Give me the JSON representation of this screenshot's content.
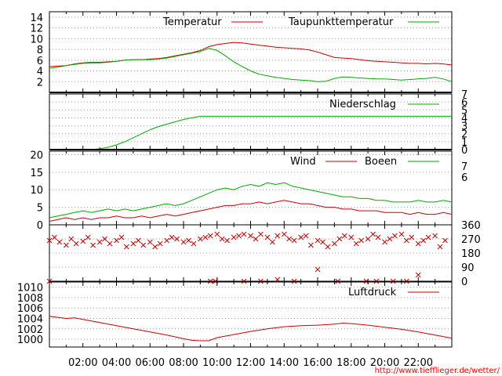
{
  "chart_data": [
    {
      "type": "line",
      "title": "",
      "xlabel": "",
      "ylabel": "",
      "xlim": [
        0,
        24
      ],
      "ylim": [
        0,
        15
      ],
      "yticks": [
        2,
        4,
        6,
        8,
        10,
        12,
        14
      ],
      "grid": true,
      "legend_position": "top-right",
      "series": [
        {
          "name": "Temperatur",
          "color": "#cc0000",
          "x": [
            0,
            0.5,
            1,
            1.5,
            2,
            2.5,
            3,
            3.5,
            4,
            4.5,
            5,
            5.5,
            6,
            6.5,
            7,
            7.5,
            8,
            8.5,
            9,
            9.5,
            10,
            10.5,
            11,
            11.5,
            12,
            12.5,
            13,
            13.5,
            14,
            14.5,
            15,
            15.5,
            16,
            16.5,
            17,
            17.5,
            18,
            18.5,
            19,
            19.5,
            20,
            20.5,
            21,
            21.5,
            22,
            22.5,
            23,
            23.5,
            24
          ],
          "values": [
            4.8,
            4.9,
            5.0,
            5.3,
            5.5,
            5.6,
            5.6,
            5.7,
            5.8,
            6.0,
            6.1,
            6.1,
            6.2,
            6.3,
            6.5,
            6.8,
            7.1,
            7.4,
            7.8,
            8.5,
            8.9,
            9.1,
            9.3,
            9.2,
            9.0,
            8.8,
            8.6,
            8.4,
            8.3,
            8.2,
            8.1,
            7.9,
            7.5,
            7.0,
            6.5,
            6.4,
            6.3,
            6.1,
            5.9,
            5.8,
            5.7,
            5.6,
            5.5,
            5.4,
            5.4,
            5.3,
            5.4,
            5.3,
            5.1
          ]
        },
        {
          "name": "Taupunkttemperatur",
          "color": "#00aa00",
          "x": [
            0,
            0.5,
            1,
            1.5,
            2,
            2.5,
            3,
            3.5,
            4,
            4.5,
            5,
            5.5,
            6,
            6.5,
            7,
            7.5,
            8,
            8.5,
            9,
            9.5,
            10,
            10.5,
            11,
            11.5,
            12,
            12.5,
            13,
            13.5,
            14,
            14.5,
            15,
            15.5,
            16,
            16.5,
            17,
            17.5,
            18,
            18.5,
            19,
            19.5,
            20,
            20.5,
            21,
            21.5,
            22,
            22.5,
            23,
            23.5,
            24
          ],
          "values": [
            4.5,
            4.7,
            5.0,
            5.2,
            5.4,
            5.5,
            5.5,
            5.6,
            5.8,
            6.0,
            6.1,
            6.1,
            6.1,
            6.2,
            6.4,
            6.7,
            7.0,
            7.3,
            7.6,
            8.2,
            7.8,
            6.8,
            5.7,
            4.8,
            4.0,
            3.4,
            3.1,
            2.8,
            2.6,
            2.4,
            2.3,
            2.2,
            2.0,
            2.1,
            2.6,
            2.9,
            2.8,
            2.7,
            2.6,
            2.5,
            2.5,
            2.4,
            2.3,
            2.4,
            2.5,
            2.6,
            2.8,
            2.5,
            2.0
          ]
        }
      ]
    },
    {
      "type": "line",
      "title": "",
      "xlabel": "",
      "ylabel": "",
      "xlim": [
        0,
        24
      ],
      "ylim": [
        0,
        7
      ],
      "yticks": [
        0,
        1,
        2,
        3,
        4,
        5,
        6,
        7
      ],
      "grid": true,
      "legend_position": "top-right",
      "series": [
        {
          "name": "Niederschlag",
          "color": "#00aa00",
          "x": [
            0,
            2.5,
            3,
            3.5,
            4,
            4.5,
            5,
            5.5,
            6,
            6.5,
            7,
            7.5,
            8,
            8.5,
            9,
            24
          ],
          "values": [
            0,
            0,
            0.1,
            0.3,
            0.6,
            1.0,
            1.5,
            2.0,
            2.5,
            2.9,
            3.2,
            3.5,
            3.8,
            4.0,
            4.2,
            4.2
          ]
        }
      ]
    },
    {
      "type": "line",
      "title": "",
      "xlabel": "",
      "ylabel": "",
      "xlim": [
        0,
        24
      ],
      "ylim": [
        0,
        21
      ],
      "yticks": [
        0,
        5,
        10,
        15,
        20
      ],
      "right_ticks": [
        "7",
        "6"
      ],
      "grid": true,
      "legend_position": "top-right",
      "series": [
        {
          "name": "Wind",
          "color": "#cc0000",
          "x": [
            0,
            0.5,
            1,
            1.5,
            2,
            2.5,
            3,
            3.5,
            4,
            4.5,
            5,
            5.5,
            6,
            6.5,
            7,
            7.5,
            8,
            8.5,
            9,
            9.5,
            10,
            10.5,
            11,
            11.5,
            12,
            12.5,
            13,
            13.5,
            14,
            14.5,
            15,
            15.5,
            16,
            16.5,
            17,
            17.5,
            18,
            18.5,
            19,
            19.5,
            20,
            20.5,
            21,
            21.5,
            22,
            22.5,
            23,
            23.5,
            24
          ],
          "values": [
            1.0,
            1.5,
            2.0,
            1.5,
            2.0,
            1.5,
            2.0,
            2.0,
            2.5,
            2.0,
            2.0,
            2.5,
            2.0,
            2.5,
            3.0,
            2.5,
            3.0,
            3.5,
            4.0,
            4.5,
            5.0,
            5.5,
            5.5,
            6.0,
            6.0,
            6.5,
            6.0,
            6.5,
            7.0,
            6.5,
            6.0,
            6.0,
            5.5,
            5.0,
            5.0,
            4.5,
            4.5,
            4.0,
            4.0,
            4.0,
            3.5,
            3.5,
            3.5,
            3.0,
            3.5,
            3.0,
            3.0,
            3.5,
            3.0
          ]
        },
        {
          "name": "Boeen",
          "color": "#00aa00",
          "x": [
            0,
            0.5,
            1,
            1.5,
            2,
            2.5,
            3,
            3.5,
            4,
            4.5,
            5,
            5.5,
            6,
            6.5,
            7,
            7.5,
            8,
            8.5,
            9,
            9.5,
            10,
            10.5,
            11,
            11.5,
            12,
            12.5,
            13,
            13.5,
            14,
            14.5,
            15,
            15.5,
            16,
            16.5,
            17,
            17.5,
            18,
            18.5,
            19,
            19.5,
            20,
            20.5,
            21,
            21.5,
            22,
            22.5,
            23,
            23.5,
            24
          ],
          "values": [
            2.0,
            2.5,
            3.0,
            3.5,
            4.0,
            3.5,
            4.0,
            4.5,
            4.0,
            4.5,
            4.0,
            4.5,
            5.0,
            5.5,
            6.0,
            5.5,
            6.0,
            7.0,
            8.0,
            9.0,
            10.0,
            10.5,
            10.0,
            11.0,
            11.5,
            11.0,
            12.0,
            11.5,
            12.0,
            11.0,
            10.5,
            10.0,
            9.5,
            9.0,
            8.5,
            8.0,
            8.0,
            7.5,
            7.5,
            7.0,
            7.0,
            6.5,
            6.5,
            6.5,
            7.0,
            6.5,
            6.5,
            7.0,
            6.5
          ]
        }
      ]
    },
    {
      "type": "scatter",
      "title": "",
      "xlabel": "",
      "ylabel": "",
      "xlim": [
        0,
        24
      ],
      "ylim": [
        0,
        360
      ],
      "yticks": [
        0,
        90,
        180,
        270,
        360
      ],
      "grid": true,
      "series": [
        {
          "name": "",
          "color": "#cc0000",
          "marker": "x",
          "x": [
            0,
            0.3,
            0.6,
            1.0,
            1.3,
            1.6,
            2.0,
            2.3,
            2.6,
            3.0,
            3.3,
            3.6,
            4.0,
            4.3,
            4.6,
            5.0,
            5.3,
            5.6,
            6.0,
            6.3,
            6.6,
            7.0,
            7.3,
            7.6,
            8.0,
            8.3,
            8.6,
            9.0,
            9.3,
            9.6,
            10.0,
            10.3,
            10.6,
            11.0,
            11.3,
            11.6,
            12.0,
            12.3,
            12.6,
            13.0,
            13.3,
            13.6,
            14.0,
            14.3,
            14.6,
            15.0,
            15.3,
            15.6,
            16.0,
            16.3,
            16.6,
            17.0,
            17.3,
            17.6,
            18.0,
            18.3,
            18.6,
            19.0,
            19.3,
            19.6,
            20.0,
            20.3,
            20.6,
            21.0,
            21.3,
            21.6,
            22.0,
            22.3,
            22.6,
            23.0,
            23.3,
            23.6,
            0.0,
            9.6,
            9.9,
            11.6,
            12.6,
            13.6,
            14.6,
            17.2,
            18.9,
            19.5,
            20.5,
            21.3,
            16.0,
            22.0
          ],
          "values": [
            260,
            280,
            250,
            230,
            270,
            240,
            255,
            280,
            230,
            250,
            270,
            240,
            260,
            280,
            220,
            240,
            260,
            230,
            250,
            220,
            240,
            260,
            280,
            270,
            250,
            260,
            240,
            270,
            280,
            290,
            300,
            270,
            260,
            280,
            290,
            300,
            290,
            270,
            300,
            280,
            250,
            290,
            300,
            270,
            260,
            280,
            290,
            230,
            260,
            250,
            220,
            240,
            270,
            290,
            280,
            240,
            260,
            270,
            300,
            280,
            250,
            270,
            290,
            300,
            260,
            280,
            240,
            260,
            280,
            290,
            220,
            260,
            0,
            0,
            0,
            0,
            0,
            10,
            0,
            0,
            0,
            0,
            0,
            0,
            75,
            40
          ]
        }
      ]
    },
    {
      "type": "line",
      "title": "",
      "xlabel": "",
      "ylabel": "",
      "xlim": [
        0,
        24
      ],
      "ylim": [
        998.5,
        1011
      ],
      "yticks": [
        1000,
        1002,
        1004,
        1006,
        1008,
        1010
      ],
      "grid": true,
      "legend_position": "top-right",
      "x_tick_labels": [
        "02:00",
        "04:00",
        "06:00",
        "08:00",
        "10:00",
        "12:00",
        "14:00",
        "16:00",
        "18:00",
        "20:00",
        "22:00"
      ],
      "series": [
        {
          "name": "Luftdruck",
          "color": "#cc0000",
          "x": [
            0,
            1,
            1.5,
            2,
            3,
            4,
            5,
            6,
            7,
            8,
            8.5,
            9,
            9.5,
            10,
            11,
            12,
            13,
            14,
            15,
            16,
            17,
            17.5,
            18,
            19,
            20,
            21,
            22,
            23,
            24
          ],
          "values": [
            1004.4,
            1004.0,
            1004.1,
            1003.8,
            1003.2,
            1002.6,
            1002.0,
            1001.4,
            1000.8,
            1000.1,
            999.8,
            999.7,
            999.7,
            1000.3,
            1000.9,
            1001.5,
            1002.0,
            1002.4,
            1002.6,
            1002.7,
            1002.9,
            1003.1,
            1003.0,
            1002.7,
            1002.3,
            1001.9,
            1001.4,
            1000.8,
            1000.2
          ]
        }
      ]
    }
  ],
  "footer": {
    "credit": "http://www.tiefflieger.de/wetter/"
  }
}
